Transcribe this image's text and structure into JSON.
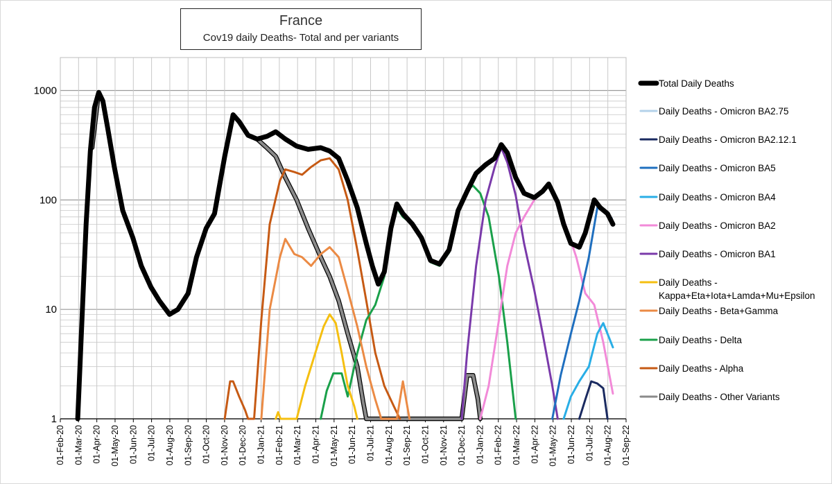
{
  "chart_data": {
    "type": "line",
    "title": "France",
    "subtitle": "Cov19 daily Deaths- Total and per variants",
    "y_scale": "log",
    "ylim": [
      1,
      2000
    ],
    "y_ticks": [
      1,
      10,
      100,
      1000
    ],
    "y_tick_labels": [
      "1",
      "10",
      "100",
      "1000"
    ],
    "xlim": [
      "2020-02-01",
      "2022-09-01"
    ],
    "x_tick_labels": [
      "01-Feb-20",
      "01-Mar-20",
      "01-Apr-20",
      "01-May-20",
      "01-Jun-20",
      "01-Jul-20",
      "01-Aug-20",
      "01-Sep-20",
      "01-Oct-20",
      "01-Nov-20",
      "01-Dec-20",
      "01-Jan-21",
      "01-Feb-21",
      "01-Mar-21",
      "01-Apr-21",
      "01-May-21",
      "01-Jun-21",
      "01-Jul-21",
      "01-Aug-21",
      "01-Sep-21",
      "01-Oct-21",
      "01-Nov-21",
      "01-Dec-21",
      "01-Jan-22",
      "01-Feb-22",
      "01-Mar-22",
      "01-Apr-22",
      "01-May-22",
      "01-Jun-22",
      "01-Jul-22",
      "01-Aug-22",
      "01-Sep-22"
    ],
    "grid": true,
    "legend_position": "right",
    "series": [
      {
        "name": "Total Daily Deaths",
        "color": "#000000",
        "width": 7,
        "points": [
          [
            "2020-03-01",
            1
          ],
          [
            "2020-03-08",
            8
          ],
          [
            "2020-03-15",
            60
          ],
          [
            "2020-03-22",
            280
          ],
          [
            "2020-03-29",
            700
          ],
          [
            "2020-04-05",
            960
          ],
          [
            "2020-04-12",
            800
          ],
          [
            "2020-04-20",
            450
          ],
          [
            "2020-05-01",
            200
          ],
          [
            "2020-05-15",
            80
          ],
          [
            "2020-06-01",
            45
          ],
          [
            "2020-06-15",
            25
          ],
          [
            "2020-07-01",
            16
          ],
          [
            "2020-07-15",
            12
          ],
          [
            "2020-08-01",
            9
          ],
          [
            "2020-08-15",
            10
          ],
          [
            "2020-09-01",
            14
          ],
          [
            "2020-09-15",
            30
          ],
          [
            "2020-10-01",
            55
          ],
          [
            "2020-10-15",
            75
          ],
          [
            "2020-11-01",
            250
          ],
          [
            "2020-11-15",
            600
          ],
          [
            "2020-11-25",
            520
          ],
          [
            "2020-12-10",
            390
          ],
          [
            "2020-12-25",
            360
          ],
          [
            "2021-01-10",
            380
          ],
          [
            "2021-01-25",
            420
          ],
          [
            "2021-02-10",
            360
          ],
          [
            "2021-03-01",
            310
          ],
          [
            "2021-03-20",
            290
          ],
          [
            "2021-04-10",
            300
          ],
          [
            "2021-04-25",
            280
          ],
          [
            "2021-05-10",
            240
          ],
          [
            "2021-05-25",
            150
          ],
          [
            "2021-06-10",
            85
          ],
          [
            "2021-06-25",
            40
          ],
          [
            "2021-07-05",
            25
          ],
          [
            "2021-07-15",
            17
          ],
          [
            "2021-07-25",
            22
          ],
          [
            "2021-08-05",
            55
          ],
          [
            "2021-08-15",
            92
          ],
          [
            "2021-08-25",
            75
          ],
          [
            "2021-09-10",
            60
          ],
          [
            "2021-09-25",
            45
          ],
          [
            "2021-10-10",
            28
          ],
          [
            "2021-10-25",
            26
          ],
          [
            "2021-11-10",
            35
          ],
          [
            "2021-11-25",
            80
          ],
          [
            "2021-12-10",
            120
          ],
          [
            "2021-12-25",
            175
          ],
          [
            "2022-01-10",
            210
          ],
          [
            "2022-01-25",
            240
          ],
          [
            "2022-02-05",
            320
          ],
          [
            "2022-02-15",
            270
          ],
          [
            "2022-03-01",
            160
          ],
          [
            "2022-03-15",
            115
          ],
          [
            "2022-04-01",
            105
          ],
          [
            "2022-04-15",
            120
          ],
          [
            "2022-04-25",
            140
          ],
          [
            "2022-05-10",
            95
          ],
          [
            "2022-05-20",
            60
          ],
          [
            "2022-06-01",
            40
          ],
          [
            "2022-06-15",
            37
          ],
          [
            "2022-06-25",
            50
          ],
          [
            "2022-07-10",
            100
          ],
          [
            "2022-07-20",
            85
          ],
          [
            "2022-08-01",
            75
          ],
          [
            "2022-08-10",
            60
          ]
        ]
      },
      {
        "name": "Daily Deaths - Omicron BA2.75",
        "color": "#b3d2ea",
        "width": 3,
        "points": []
      },
      {
        "name": "Daily Deaths - Omicron BA2.12.1",
        "color": "#1a2a60",
        "width": 3,
        "points": [
          [
            "2022-06-15",
            1
          ],
          [
            "2022-06-25",
            1.5
          ],
          [
            "2022-07-05",
            2.2
          ],
          [
            "2022-07-15",
            2.1
          ],
          [
            "2022-07-25",
            1.9
          ],
          [
            "2022-08-01",
            1
          ]
        ]
      },
      {
        "name": "Daily Deaths - Omicron BA5",
        "color": "#1f6fbf",
        "width": 3,
        "points": [
          [
            "2022-05-01",
            1
          ],
          [
            "2022-05-15",
            2.5
          ],
          [
            "2022-06-01",
            6
          ],
          [
            "2022-06-15",
            12
          ],
          [
            "2022-07-01",
            30
          ],
          [
            "2022-07-15",
            85
          ],
          [
            "2022-07-25",
            80
          ],
          [
            "2022-08-08",
            68
          ]
        ]
      },
      {
        "name": "Daily Deaths - Omicron BA4",
        "color": "#29aee6",
        "width": 3,
        "points": [
          [
            "2022-05-20",
            1
          ],
          [
            "2022-06-01",
            1.6
          ],
          [
            "2022-06-15",
            2.2
          ],
          [
            "2022-07-01",
            3
          ],
          [
            "2022-07-15",
            6
          ],
          [
            "2022-07-25",
            7.5
          ],
          [
            "2022-08-10",
            4.5
          ]
        ]
      },
      {
        "name": "Daily Deaths - Omicron BA2",
        "color": "#f28ad8",
        "width": 3,
        "points": [
          [
            "2022-01-01",
            1
          ],
          [
            "2022-01-15",
            2
          ],
          [
            "2022-02-01",
            8
          ],
          [
            "2022-02-15",
            25
          ],
          [
            "2022-03-01",
            50
          ],
          [
            "2022-03-15",
            70
          ],
          [
            "2022-04-01",
            100
          ],
          [
            "2022-04-15",
            120
          ],
          [
            "2022-04-25",
            140
          ],
          [
            "2022-05-10",
            95
          ],
          [
            "2022-05-25",
            55
          ],
          [
            "2022-06-10",
            30
          ],
          [
            "2022-06-25",
            14
          ],
          [
            "2022-07-10",
            11
          ],
          [
            "2022-07-25",
            5
          ],
          [
            "2022-08-10",
            1.7
          ]
        ]
      },
      {
        "name": "Daily Deaths - Omicron BA1",
        "color": "#7a3aaa",
        "width": 3,
        "points": [
          [
            "2021-12-01",
            1
          ],
          [
            "2021-12-10",
            4
          ],
          [
            "2021-12-25",
            25
          ],
          [
            "2022-01-10",
            100
          ],
          [
            "2022-01-25",
            200
          ],
          [
            "2022-02-05",
            300
          ],
          [
            "2022-02-15",
            220
          ],
          [
            "2022-03-01",
            110
          ],
          [
            "2022-03-15",
            40
          ],
          [
            "2022-04-01",
            15
          ],
          [
            "2022-04-15",
            6
          ],
          [
            "2022-05-01",
            2
          ],
          [
            "2022-05-10",
            1
          ]
        ]
      },
      {
        "name": "Daily Deaths - Kappa+Eta+Iota+Lamda+Mu+Epsilon",
        "color": "#f5bf10",
        "width": 3,
        "points": [
          [
            "2021-01-25",
            1
          ],
          [
            "2021-01-29",
            1.15
          ],
          [
            "2021-02-02",
            1
          ],
          [
            "2021-03-01",
            1
          ],
          [
            "2021-03-15",
            2
          ],
          [
            "2021-04-01",
            4
          ],
          [
            "2021-04-15",
            7
          ],
          [
            "2021-04-25",
            9
          ],
          [
            "2021-05-05",
            7.5
          ],
          [
            "2021-05-15",
            4
          ],
          [
            "2021-05-25",
            2
          ],
          [
            "2021-06-05",
            1.3
          ],
          [
            "2021-06-10",
            1
          ]
        ]
      },
      {
        "name": "Daily Deaths - Beta+Gamma",
        "color": "#eb8a44",
        "width": 3,
        "points": [
          [
            "2021-01-01",
            1
          ],
          [
            "2021-01-15",
            10
          ],
          [
            "2021-02-01",
            30
          ],
          [
            "2021-02-10",
            44
          ],
          [
            "2021-02-25",
            32
          ],
          [
            "2021-03-10",
            30
          ],
          [
            "2021-03-25",
            25
          ],
          [
            "2021-04-10",
            32
          ],
          [
            "2021-04-25",
            37
          ],
          [
            "2021-05-10",
            30
          ],
          [
            "2021-05-25",
            15
          ],
          [
            "2021-06-10",
            7
          ],
          [
            "2021-06-25",
            3
          ],
          [
            "2021-07-10",
            1.5
          ],
          [
            "2021-07-20",
            1
          ],
          [
            "2021-08-15",
            1
          ],
          [
            "2021-08-25",
            2.2
          ],
          [
            "2021-09-05",
            1
          ]
        ]
      },
      {
        "name": "Daily Deaths - Delta",
        "color": "#1aa04a",
        "width": 3,
        "points": [
          [
            "2021-04-10",
            1
          ],
          [
            "2021-04-20",
            1.8
          ],
          [
            "2021-05-01",
            2.6
          ],
          [
            "2021-05-15",
            2.6
          ],
          [
            "2021-05-25",
            1.6
          ],
          [
            "2021-06-10",
            4
          ],
          [
            "2021-06-25",
            8
          ],
          [
            "2021-07-10",
            11
          ],
          [
            "2021-07-25",
            20
          ],
          [
            "2021-08-05",
            50
          ],
          [
            "2021-08-15",
            85
          ],
          [
            "2021-08-25",
            70
          ],
          [
            "2021-09-10",
            60
          ],
          [
            "2021-09-25",
            45
          ],
          [
            "2021-10-10",
            27
          ],
          [
            "2021-10-25",
            25
          ],
          [
            "2021-11-10",
            33
          ],
          [
            "2021-11-25",
            80
          ],
          [
            "2021-12-10",
            125
          ],
          [
            "2021-12-20",
            135
          ],
          [
            "2022-01-01",
            115
          ],
          [
            "2022-01-15",
            70
          ],
          [
            "2022-02-01",
            20
          ],
          [
            "2022-02-15",
            5
          ],
          [
            "2022-03-01",
            1
          ]
        ]
      },
      {
        "name": "Daily Deaths - Alpha",
        "color": "#c65a14",
        "width": 3,
        "points": [
          [
            "2020-11-01",
            1
          ],
          [
            "2020-11-10",
            2.2
          ],
          [
            "2020-11-15",
            2.2
          ],
          [
            "2020-11-25",
            1.6
          ],
          [
            "2020-12-05",
            1.2
          ],
          [
            "2020-12-10",
            1
          ],
          [
            "2020-12-20",
            1
          ],
          [
            "2021-01-01",
            8
          ],
          [
            "2021-01-15",
            60
          ],
          [
            "2021-02-01",
            150
          ],
          [
            "2021-02-10",
            190
          ],
          [
            "2021-02-25",
            180
          ],
          [
            "2021-03-10",
            170
          ],
          [
            "2021-03-25",
            200
          ],
          [
            "2021-04-10",
            230
          ],
          [
            "2021-04-25",
            240
          ],
          [
            "2021-05-10",
            190
          ],
          [
            "2021-05-25",
            100
          ],
          [
            "2021-06-10",
            35
          ],
          [
            "2021-06-25",
            12
          ],
          [
            "2021-07-10",
            4
          ],
          [
            "2021-07-25",
            2
          ],
          [
            "2021-08-10",
            1.3
          ],
          [
            "2021-08-20",
            1
          ]
        ]
      },
      {
        "name": "Daily Deaths - Other Variants",
        "color": "#8a8a8a",
        "width": 4,
        "points": [
          [
            "2020-03-25",
            300
          ],
          [
            "2020-04-05",
            960
          ],
          [
            "2020-04-12",
            800
          ],
          [
            "2020-04-20",
            450
          ],
          [
            "2020-05-01",
            200
          ],
          [
            "2020-05-15",
            80
          ],
          [
            "2020-06-01",
            45
          ],
          [
            "2020-06-15",
            25
          ],
          [
            "2020-07-01",
            16
          ],
          [
            "2020-07-15",
            12
          ],
          [
            "2020-08-01",
            9
          ],
          [
            "2020-08-15",
            10
          ],
          [
            "2020-09-01",
            14
          ],
          [
            "2020-09-15",
            30
          ],
          [
            "2020-10-01",
            55
          ],
          [
            "2020-10-15",
            75
          ],
          [
            "2020-11-01",
            250
          ],
          [
            "2020-11-15",
            600
          ],
          [
            "2020-11-25",
            520
          ],
          [
            "2020-12-10",
            390
          ],
          [
            "2020-12-25",
            360
          ],
          [
            "2021-01-10",
            300
          ],
          [
            "2021-01-25",
            250
          ],
          [
            "2021-02-10",
            160
          ],
          [
            "2021-03-01",
            100
          ],
          [
            "2021-03-20",
            55
          ],
          [
            "2021-04-10",
            30
          ],
          [
            "2021-04-25",
            20
          ],
          [
            "2021-05-10",
            12
          ],
          [
            "2021-05-25",
            6
          ],
          [
            "2021-06-10",
            3
          ],
          [
            "2021-06-20",
            1.4
          ],
          [
            "2021-06-25",
            1
          ],
          [
            "2021-12-01",
            1
          ],
          [
            "2021-12-10",
            2.5
          ],
          [
            "2021-12-20",
            2.5
          ],
          [
            "2021-12-28",
            1.5
          ],
          [
            "2022-01-01",
            1
          ]
        ]
      }
    ]
  }
}
